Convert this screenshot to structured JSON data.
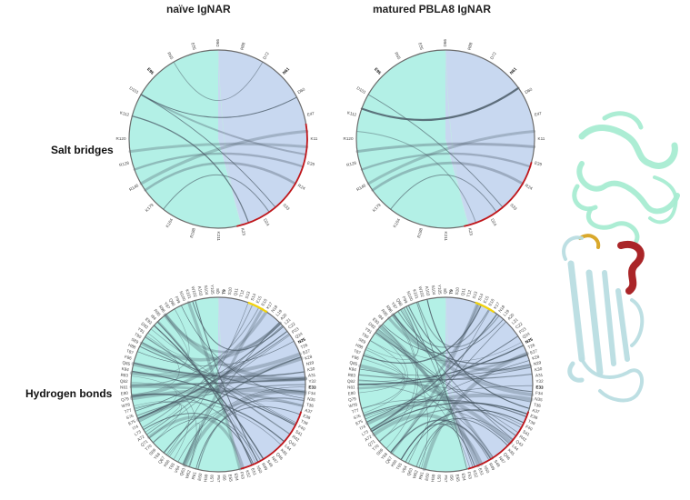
{
  "column_titles": [
    "naïve IgNAR",
    "matured PBLA8 IgNAR"
  ],
  "row_titles": [
    "Salt bridges",
    "Hydrogen bonds"
  ],
  "colors": {
    "left_region": "#b3f0e6",
    "right_region": "#c8d8f0",
    "ring": "#6b6b6b",
    "highlight_red": "#c0171c",
    "highlight_yellow": "#f2d20a",
    "chord": "#4a5a66",
    "protein_top": "#a8ecd2",
    "protein_bottom": "#b9dde2",
    "protein_red": "#a5191c",
    "protein_yellow": "#d7a320"
  },
  "salt_bridge_labels": [
    "D66",
    "R88",
    "D72",
    "N61",
    "D60",
    "E47",
    "K11",
    "E39",
    "R24",
    "S33",
    "D24",
    "K23",
    "K211",
    "R188",
    "K164",
    "K179",
    "R146",
    "R128",
    "R120",
    "K112",
    "D101",
    "E95",
    "R65",
    "E55"
  ],
  "salt_bridge_bold": [
    "N61",
    "E95"
  ],
  "hbond_labels": [
    "Q8",
    "T9",
    "S10",
    "Q11",
    "T12",
    "S13",
    "S14",
    "E15",
    "E16",
    "K17",
    "N18",
    "L19",
    "A20",
    "L21",
    "C22",
    "P23",
    "Q24",
    "N25",
    "T26",
    "E27",
    "K28",
    "N29",
    "K30",
    "A31",
    "Y32",
    "E33",
    "F34",
    "N35",
    "T36",
    "A37",
    "E38",
    "T39",
    "F40",
    "S41",
    "R42",
    "Q43",
    "L44",
    "K45",
    "Q46",
    "N47",
    "S48",
    "R49",
    "N50",
    "E51",
    "K52",
    "F53",
    "E54",
    "E55",
    "I56",
    "F57",
    "L58",
    "H59",
    "E60",
    "R61",
    "W62",
    "Q63",
    "V64",
    "T65",
    "K66",
    "Q67",
    "Y68",
    "S69",
    "T70",
    "Q71",
    "A72",
    "L73",
    "I74",
    "E75",
    "S76",
    "T77",
    "W78",
    "Q79",
    "E80",
    "N81",
    "Q82",
    "R83",
    "K84",
    "Q85",
    "F86",
    "T87",
    "H88",
    "S89",
    "T90",
    "Y91",
    "D92",
    "E93",
    "I94",
    "R95",
    "R96",
    "Y97",
    "Q98",
    "F99",
    "N100",
    "K101",
    "W102",
    "A103",
    "S104",
    "Y105"
  ],
  "hbond_bold": [
    "T9",
    "Q18",
    "N25",
    "E33",
    "K51",
    "N61",
    "D31",
    "E95"
  ]
}
